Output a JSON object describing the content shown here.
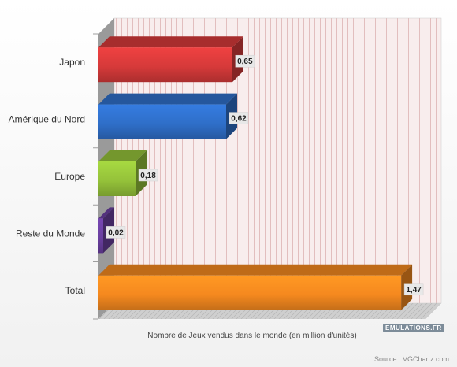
{
  "chart_data": {
    "type": "bar",
    "orientation": "horizontal",
    "style": "3d",
    "categories": [
      "Japon",
      "Amérique du Nord",
      "Europe",
      "Reste du Monde",
      "Total"
    ],
    "values": [
      0.65,
      0.62,
      0.18,
      0.02,
      1.47
    ],
    "value_labels": [
      "0,65",
      "0,62",
      "0,18",
      "0,02",
      "1,47"
    ],
    "colors": [
      "#d63a3a",
      "#2f6fc9",
      "#95c23a",
      "#6a3fa0",
      "#f5891f"
    ],
    "xlabel": "Nombre de Jeux vendus dans le monde (en million d'unités)",
    "xlim": [
      0,
      1.55
    ],
    "grid": true,
    "legend": "none"
  },
  "branding": "EMULATIONS.FR",
  "source": "Source : VGChartz.com"
}
